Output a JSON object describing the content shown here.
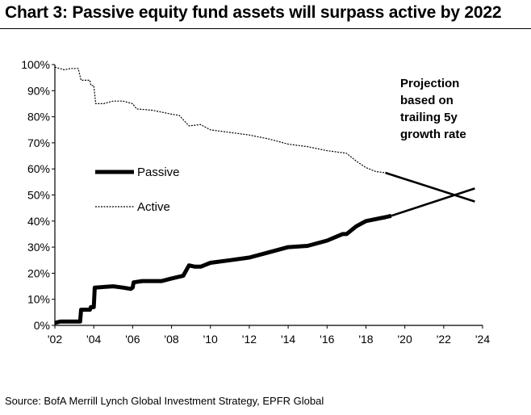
{
  "title": "Chart 3: Passive equity fund assets will surpass active by 2022",
  "source": "Source: BofA Merrill Lynch Global Investment Strategy, EPFR Global",
  "chart_data": {
    "type": "line",
    "title": "Chart 3: Passive equity fund assets will surpass active by 2022",
    "xlabel": "",
    "ylabel": "",
    "xlim": [
      2002,
      2024
    ],
    "ylim": [
      0,
      100
    ],
    "x_ticks": [
      2002,
      2004,
      2006,
      2008,
      2010,
      2012,
      2014,
      2016,
      2018,
      2020,
      2022,
      2024
    ],
    "x_tick_labels": [
      "'02",
      "'04",
      "'06",
      "'08",
      "'10",
      "'12",
      "'14",
      "'16",
      "'18",
      "'20",
      "'22",
      "'24"
    ],
    "y_ticks": [
      0,
      10,
      20,
      30,
      40,
      50,
      60,
      70,
      80,
      90,
      100
    ],
    "y_tick_labels": [
      "0%",
      "10%",
      "20%",
      "30%",
      "40%",
      "50%",
      "60%",
      "70%",
      "80%",
      "90%",
      "100%"
    ],
    "grid": false,
    "legend_position": "left-middle",
    "annotation": "Projection based on trailing 5y growth rate",
    "annotation_lines": [
      "Projection",
      "based on",
      "trailing 5y",
      "growth rate"
    ],
    "series": [
      {
        "name": "Passive",
        "style": "solid-thick",
        "color": "#000000",
        "x": [
          2002.0,
          2002.3,
          2002.6,
          2003.0,
          2003.3,
          2003.35,
          2003.8,
          2003.85,
          2004.0,
          2004.05,
          2005.0,
          2005.5,
          2005.9,
          2006.0,
          2006.05,
          2006.5,
          2007.0,
          2007.5,
          2008.0,
          2008.6,
          2008.9,
          2009.2,
          2009.5,
          2010.0,
          2011.0,
          2012.0,
          2013.0,
          2014.0,
          2015.0,
          2016.0,
          2016.8,
          2017.0,
          2017.5,
          2018.0,
          2019.0,
          2019.3
        ],
        "y": [
          1,
          1.5,
          1.5,
          1.5,
          1.5,
          6,
          6,
          7,
          7,
          14.5,
          15,
          14.5,
          14,
          14.5,
          16.5,
          17,
          17,
          17,
          18,
          19,
          23,
          22.5,
          22.5,
          24,
          25,
          26,
          28,
          30,
          30.5,
          32.5,
          35,
          35,
          38,
          40,
          41.5,
          42
        ]
      },
      {
        "name": "Passive projection",
        "style": "solid-thin",
        "color": "#000000",
        "x": [
          2019.3,
          2023.6
        ],
        "y": [
          42,
          52.5
        ]
      },
      {
        "name": "Active",
        "style": "dashed",
        "color": "#000000",
        "x": [
          2002.0,
          2002.5,
          2002.8,
          2003.2,
          2003.35,
          2003.8,
          2003.85,
          2004.0,
          2004.1,
          2004.5,
          2005.0,
          2005.5,
          2006.0,
          2006.2,
          2007.0,
          2008.0,
          2008.4,
          2008.9,
          2009.5,
          2010.0,
          2011.0,
          2012.0,
          2013.0,
          2014.0,
          2015.0,
          2016.0,
          2017.0,
          2017.5,
          2018.0,
          2018.5,
          2019.0
        ],
        "y": [
          99,
          98,
          98.5,
          98.5,
          94,
          94,
          92,
          92,
          85,
          85,
          86,
          86,
          85,
          83,
          82.5,
          81,
          80.5,
          76.5,
          77,
          75,
          74,
          73,
          71.5,
          69.5,
          68.5,
          67,
          66,
          63,
          60.5,
          59,
          58.5
        ]
      },
      {
        "name": "Active projection",
        "style": "solid-thin",
        "color": "#000000",
        "x": [
          2019.0,
          2023.6
        ],
        "y": [
          58.5,
          47.5
        ]
      }
    ],
    "legend": [
      {
        "name": "Passive",
        "style": "solid-thick"
      },
      {
        "name": "Active",
        "style": "dashed"
      }
    ]
  }
}
